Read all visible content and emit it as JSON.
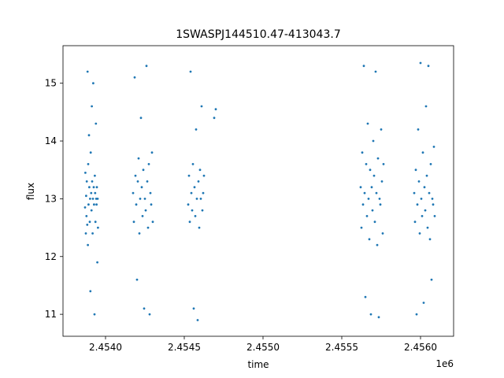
{
  "chart_data": {
    "type": "scatter",
    "title": "1SWASPJ144510.47-413043.7",
    "xlabel": "time",
    "ylabel": "flux",
    "x_offset_label": "1e6",
    "xlim": [
      2453730,
      2456210
    ],
    "ylim": [
      10.62,
      15.65
    ],
    "x_ticks": [
      2454000,
      2454500,
      2455000,
      2455500,
      2456000
    ],
    "x_tick_labels": [
      "2.4540",
      "2.4545",
      "2.4550",
      "2.4555",
      "2.4560"
    ],
    "y_ticks": [
      11,
      12,
      13,
      14,
      15
    ],
    "y_tick_labels": [
      "11",
      "12",
      "13",
      "14",
      "15"
    ],
    "grid": false,
    "legend": "none",
    "marker_color": "#1f77b4",
    "series": [
      {
        "x": [
          2453870,
          2453872,
          2453875,
          2453877,
          2453879,
          2453881,
          2453884,
          2453886,
          2453888,
          2453890,
          2453892,
          2453895,
          2453897,
          2453900,
          2453902,
          2453904,
          2453906,
          2453909,
          2453911,
          2453913,
          2453915,
          2453918,
          2453920,
          2453922,
          2453925,
          2453927,
          2453930,
          2453932,
          2453934,
          2453936,
          2453939,
          2453941,
          2453943,
          2453945,
          2453948,
          2453950,
          2453952
        ],
        "y": [
          12.85,
          13.45,
          12.4,
          13.05,
          12.7,
          13.3,
          12.55,
          15.2,
          12.2,
          13.6,
          12.9,
          14.1,
          13.2,
          12.6,
          13.0,
          11.4,
          13.8,
          13.1,
          12.8,
          14.6,
          13.3,
          12.4,
          13.0,
          15.0,
          13.2,
          12.9,
          11.0,
          13.4,
          13.1,
          12.6,
          14.3,
          13.0,
          12.9,
          13.2,
          11.9,
          13.0,
          12.5
        ]
      },
      {
        "x": [
          2454175,
          2454180,
          2454185,
          2454190,
          2454195,
          2454200,
          2454205,
          2454210,
          2454215,
          2454220,
          2454225,
          2454230,
          2454235,
          2454240,
          2454245,
          2454250,
          2454255,
          2454260,
          2454265,
          2454270,
          2454275,
          2454280,
          2454285,
          2454290,
          2454295,
          2454300
        ],
        "y": [
          13.1,
          12.6,
          15.1,
          13.4,
          12.9,
          11.6,
          13.3,
          13.7,
          12.4,
          13.0,
          14.4,
          13.2,
          12.7,
          13.5,
          11.1,
          13.0,
          12.8,
          15.3,
          13.3,
          12.5,
          13.6,
          11.0,
          13.1,
          12.9,
          13.8,
          12.6
        ]
      },
      {
        "x": [
          2454525,
          2454530,
          2454535,
          2454540,
          2454545,
          2454550,
          2454555,
          2454560,
          2454565,
          2454570,
          2454575,
          2454580,
          2454585,
          2454590,
          2454595,
          2454600,
          2454605,
          2454610,
          2454615,
          2454620,
          2454625
        ],
        "y": [
          12.9,
          13.4,
          12.6,
          15.2,
          13.1,
          12.8,
          13.6,
          11.1,
          13.2,
          12.7,
          14.2,
          13.0,
          10.9,
          13.3,
          12.5,
          13.5,
          13.0,
          14.6,
          12.8,
          13.1,
          13.4
        ]
      },
      {
        "x": [
          2454690,
          2454700
        ],
        "y": [
          14.4,
          14.55
        ]
      },
      {
        "x": [
          2455620,
          2455625,
          2455630,
          2455635,
          2455640,
          2455645,
          2455650,
          2455655,
          2455660,
          2455665,
          2455670,
          2455675,
          2455680,
          2455685,
          2455690,
          2455695,
          2455700,
          2455705,
          2455710,
          2455715,
          2455720,
          2455725,
          2455730,
          2455735,
          2455740,
          2455745,
          2455750,
          2455755,
          2455760,
          2455765
        ],
        "y": [
          13.2,
          12.5,
          13.8,
          12.9,
          15.3,
          13.1,
          11.3,
          13.6,
          12.7,
          14.3,
          13.0,
          12.3,
          13.5,
          11.0,
          13.2,
          12.8,
          14.0,
          13.4,
          12.6,
          15.2,
          13.1,
          12.2,
          13.7,
          10.95,
          13.0,
          12.9,
          14.2,
          13.3,
          12.4,
          13.6
        ]
      },
      {
        "x": [
          2455960,
          2455965,
          2455970,
          2455975,
          2455980,
          2455985,
          2455990,
          2455995,
          2456000,
          2456005,
          2456010,
          2456015,
          2456020,
          2456025,
          2456030,
          2456035,
          2456040,
          2456045,
          2456050,
          2456055,
          2456060,
          2456065,
          2456070,
          2456075,
          2456080,
          2456085,
          2456090
        ],
        "y": [
          13.1,
          12.6,
          13.5,
          11.0,
          12.9,
          14.2,
          13.3,
          12.4,
          15.35,
          13.0,
          12.7,
          13.8,
          11.2,
          13.2,
          12.8,
          14.6,
          13.4,
          12.5,
          15.3,
          13.1,
          12.3,
          13.6,
          11.6,
          13.0,
          12.9,
          13.9,
          12.7
        ]
      }
    ]
  }
}
